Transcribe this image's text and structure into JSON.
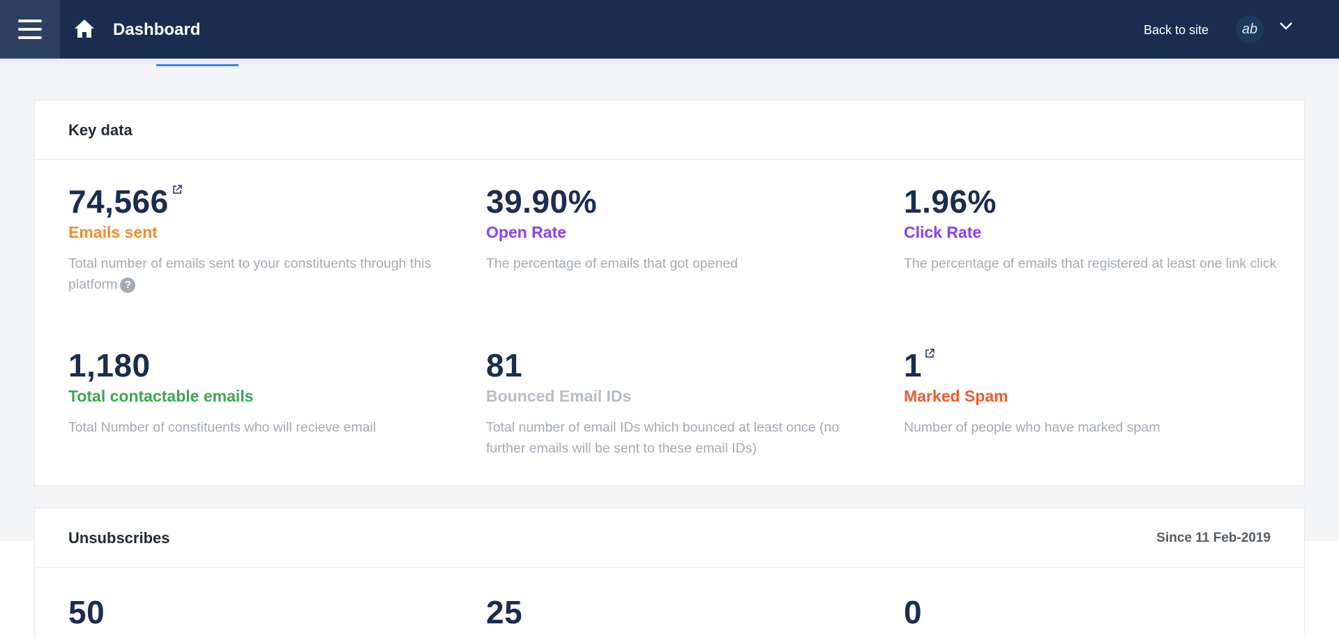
{
  "header": {
    "title": "Dashboard",
    "back_link": "Back to site",
    "avatar_text": "ab"
  },
  "key_data": {
    "title": "Key data",
    "metrics": [
      {
        "value": "74,566",
        "label": "Emails sent",
        "label_color": "#f08c2e",
        "description": "Total number of emails sent to your constituents through this platform",
        "has_link": true,
        "has_help": true
      },
      {
        "value": "39.90%",
        "label": "Open Rate",
        "label_color": "#8a3ff2",
        "description": "The percentage of emails that got opened"
      },
      {
        "value": "1.96%",
        "label": "Click Rate",
        "label_color": "#8a3ff2",
        "description": "The percentage of emails that registered at least one link click"
      },
      {
        "value": "1,180",
        "label": "Total contactable emails",
        "label_color": "#3fa552",
        "description": "Total Number of constituents who will recieve email"
      },
      {
        "value": "81",
        "label": "Bounced Email IDs",
        "label_color": "#b8bec6",
        "description": "Total number of email IDs which bounced at least once (no further emails will be sent to these email IDs)"
      },
      {
        "value": "1",
        "label": "Marked Spam",
        "label_color": "#ef5a2f",
        "description": "Number of people who have marked spam",
        "has_link": true
      }
    ]
  },
  "unsubscribes": {
    "title": "Unsubscribes",
    "since": "Since 11 Feb-2019",
    "values": [
      "50",
      "25",
      "0"
    ]
  }
}
